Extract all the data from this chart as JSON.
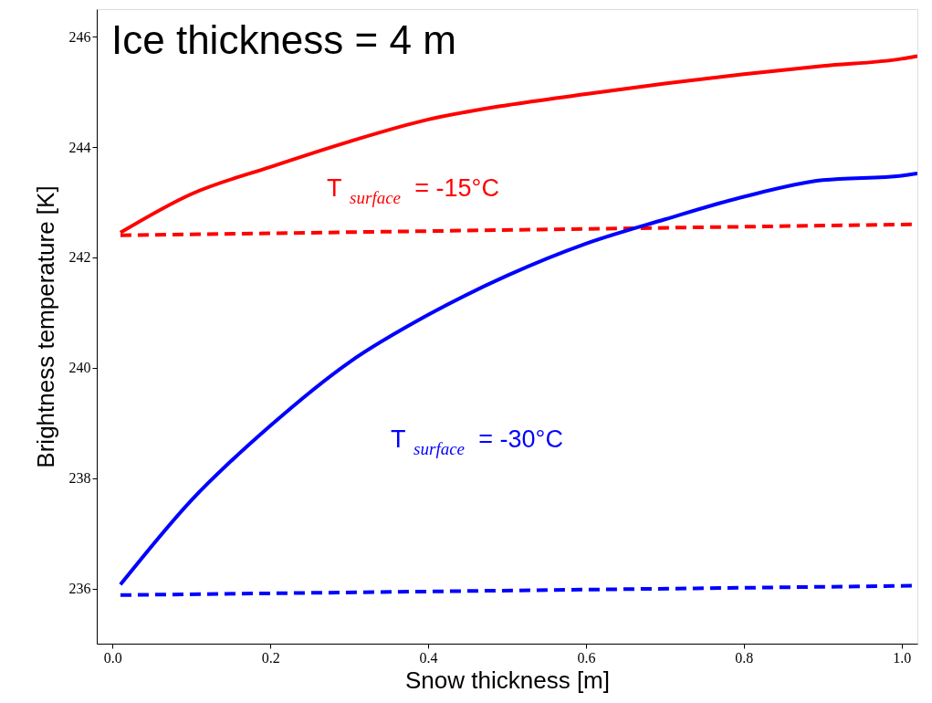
{
  "chart_data": {
    "type": "line",
    "xlabel": "Snow thickness [m]",
    "ylabel": "Brightness temperature [K]",
    "xlim": [
      -0.02,
      1.02
    ],
    "ylim": [
      235,
      246.5
    ],
    "xticks": [
      {
        "value": 0,
        "label": "0.0"
      },
      0.2,
      0.4,
      0.6,
      0.8,
      {
        "value": 1,
        "label": "1.0"
      }
    ],
    "yticks": [
      236,
      238,
      240,
      242,
      244,
      246
    ],
    "series": [
      {
        "color": "#ff0000",
        "line_style": "solid",
        "x": [
          0.01,
          0.1,
          0.2,
          0.3,
          0.4,
          0.5,
          0.6,
          0.7,
          0.8,
          0.9,
          1.0,
          1.02
        ],
        "values": [
          242.45,
          243.15,
          243.64,
          244.1,
          244.5,
          244.76,
          244.96,
          245.15,
          245.32,
          245.47,
          245.6,
          245.65
        ]
      },
      {
        "color": "#ff0000",
        "line_style": "dashed",
        "x": [
          0.01,
          1.02
        ],
        "values": [
          242.4,
          242.6
        ]
      },
      {
        "color": "#0000ff",
        "line_style": "solid",
        "x": [
          0.01,
          0.1,
          0.2,
          0.3,
          0.4,
          0.5,
          0.6,
          0.7,
          0.8,
          0.9,
          1.0,
          1.02
        ],
        "values": [
          236.07,
          237.6,
          238.95,
          240.1,
          240.96,
          241.67,
          242.25,
          242.69,
          243.1,
          243.4,
          243.48,
          243.52
        ]
      },
      {
        "color": "#0000ff",
        "line_style": "dashed",
        "x": [
          0.01,
          1.02
        ],
        "values": [
          235.88,
          236.05
        ]
      }
    ],
    "annotations": [
      "Ice thickness = 4 m",
      "T$_{surface}$ = -15°C",
      "T$_{surface}$ = -30°C"
    ]
  }
}
